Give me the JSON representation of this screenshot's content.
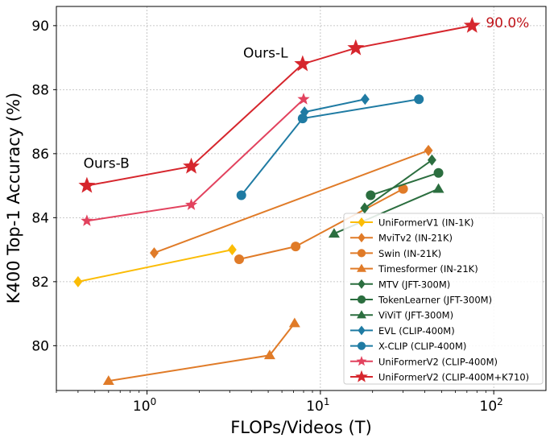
{
  "chart_data": {
    "type": "line",
    "xlabel": "FLOPs/Videos (T)",
    "ylabel": "K400 Top-1 Accuracy (%)",
    "xscale": "log",
    "xlim": [
      0.3,
      200
    ],
    "ylim": [
      78.6,
      90.6
    ],
    "x_ticks": [
      {
        "value": 1,
        "base": "10",
        "exp": "0"
      },
      {
        "value": 10,
        "base": "10",
        "exp": "1"
      },
      {
        "value": 100,
        "base": "10",
        "exp": "2"
      }
    ],
    "y_ticks": [
      80,
      82,
      84,
      86,
      88,
      90
    ],
    "grid": true,
    "legend_position": "lower-right",
    "series": [
      {
        "name": "UniFormerV1 (IN-1K)",
        "color": "#fbbc05",
        "marker": "diamond",
        "x": [
          0.4,
          3.1
        ],
        "y": [
          82.0,
          83.0
        ]
      },
      {
        "name": "MviTv2 (IN-21K)",
        "color": "#e07b28",
        "marker": "diamond",
        "x": [
          1.1,
          42
        ],
        "y": [
          82.9,
          86.1
        ]
      },
      {
        "name": "Swin (IN-21K)",
        "color": "#e07b28",
        "marker": "circle",
        "x": [
          3.4,
          7.2,
          30
        ],
        "y": [
          82.7,
          83.1,
          84.9
        ]
      },
      {
        "name": "Timesformer (IN-21K)",
        "color": "#e07b28",
        "marker": "triangle",
        "x": [
          0.6,
          5.1,
          7.1
        ],
        "y": [
          78.9,
          79.7,
          80.7
        ]
      },
      {
        "name": "MTV (JFT-300M)",
        "color": "#2b6e3f",
        "marker": "diamond",
        "x": [
          18,
          44
        ],
        "y": [
          84.3,
          85.8
        ]
      },
      {
        "name": "TokenLearner (JFT-300M)",
        "color": "#2b6e3f",
        "marker": "circle",
        "x": [
          19.5,
          48
        ],
        "y": [
          84.7,
          85.4
        ]
      },
      {
        "name": "ViViT (JFT-300M)",
        "color": "#2b6e3f",
        "marker": "triangle",
        "x": [
          12,
          48
        ],
        "y": [
          83.5,
          84.9
        ]
      },
      {
        "name": "EVL (CLIP-400M)",
        "color": "#1f7ba3",
        "marker": "diamond",
        "x": [
          8.1,
          18.1
        ],
        "y": [
          87.3,
          87.7
        ]
      },
      {
        "name": "X-CLIP (CLIP-400M)",
        "color": "#1f7ba3",
        "marker": "circle",
        "x": [
          3.5,
          7.9,
          37
        ],
        "y": [
          84.7,
          87.1,
          87.7
        ]
      },
      {
        "name": "UniFormerV2 (CLIP-400M)",
        "color": "#e2425e",
        "marker": "star",
        "x": [
          0.45,
          1.8,
          8.0
        ],
        "y": [
          83.9,
          84.4,
          87.7
        ]
      },
      {
        "name": "UniFormerV2 (CLIP-400M+K710)",
        "color": "#d6262d",
        "marker": "bigstar",
        "x": [
          0.45,
          1.8,
          7.9,
          16,
          75
        ],
        "y": [
          85.0,
          85.6,
          88.8,
          89.3,
          90.0
        ]
      }
    ],
    "annotations": [
      {
        "text": "Ours-L",
        "x": 6.5,
        "y": 89.0,
        "color": "#000000",
        "anchor": "end"
      },
      {
        "text": "Ours-B",
        "x": 0.43,
        "y": 85.55,
        "color": "#000000",
        "anchor": "start"
      },
      {
        "text": "90.0%",
        "x": 90,
        "y": 89.95,
        "color": "#c0161c",
        "anchor": "start"
      }
    ]
  }
}
